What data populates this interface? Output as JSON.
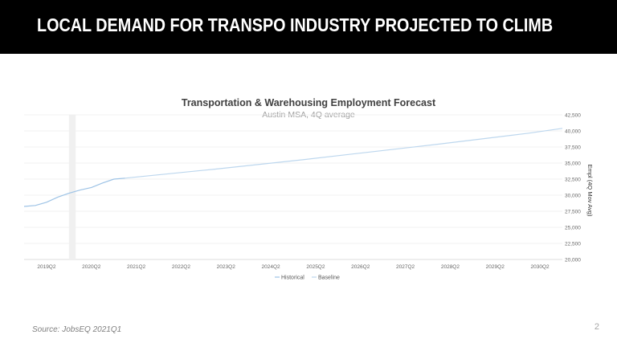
{
  "slide": {
    "title": "LOCAL DEMAND FOR TRANSPO INDUSTRY PROJECTED TO CLIMB",
    "source": "Source: JobsEQ 2021Q1",
    "page_number": "2",
    "title_bar_color": "#000000"
  },
  "chart_data": {
    "type": "line",
    "title": "Transportation  & Warehousing Employment Forecast",
    "subtitle": "Austin MSA, 4Q average",
    "ylabel": "Empl (4Q Mov Avg)",
    "ylim": [
      20000,
      42500
    ],
    "yticks": [
      20000,
      22500,
      25000,
      27500,
      30000,
      32500,
      35000,
      37500,
      40000,
      42500
    ],
    "ytick_labels": [
      "20,000",
      "22,500",
      "25,000",
      "27,500",
      "30,000",
      "32,500",
      "35,000",
      "37,500",
      "40,000",
      "42,500"
    ],
    "x_range": [
      2018.75,
      2030.75
    ],
    "xtick_labels": [
      "2019Q2",
      "2020Q2",
      "2021Q2",
      "2022Q2",
      "2023Q2",
      "2024Q2",
      "2025Q2",
      "2026Q2",
      "2027Q2",
      "2028Q2",
      "2029Q2",
      "2030Q2"
    ],
    "xtick_positions": [
      2019.25,
      2020.25,
      2021.25,
      2022.25,
      2023.25,
      2024.25,
      2025.25,
      2026.25,
      2027.25,
      2028.25,
      2029.25,
      2030.25
    ],
    "shaded_period": [
      2019.75,
      2019.9
    ],
    "grid": "horizontal",
    "legend_position": "bottom",
    "series": [
      {
        "name": "Historical",
        "color": "#9dc3e6",
        "x": [
          2018.75,
          2019.0,
          2019.25,
          2019.5,
          2019.75,
          2020.0,
          2020.25,
          2020.5,
          2020.75,
          2021.0
        ],
        "values": [
          28250,
          28400,
          28900,
          29700,
          30300,
          30800,
          31200,
          31900,
          32500,
          32650
        ]
      },
      {
        "name": "Baseline",
        "color": "#bdd7ee",
        "x": [
          2021.0,
          2022.0,
          2023.0,
          2024.0,
          2025.0,
          2026.0,
          2027.0,
          2028.0,
          2029.0,
          2030.0,
          2030.75
        ],
        "values": [
          32650,
          33350,
          34050,
          34800,
          35550,
          36350,
          37150,
          37950,
          38800,
          39650,
          40400
        ]
      }
    ]
  }
}
